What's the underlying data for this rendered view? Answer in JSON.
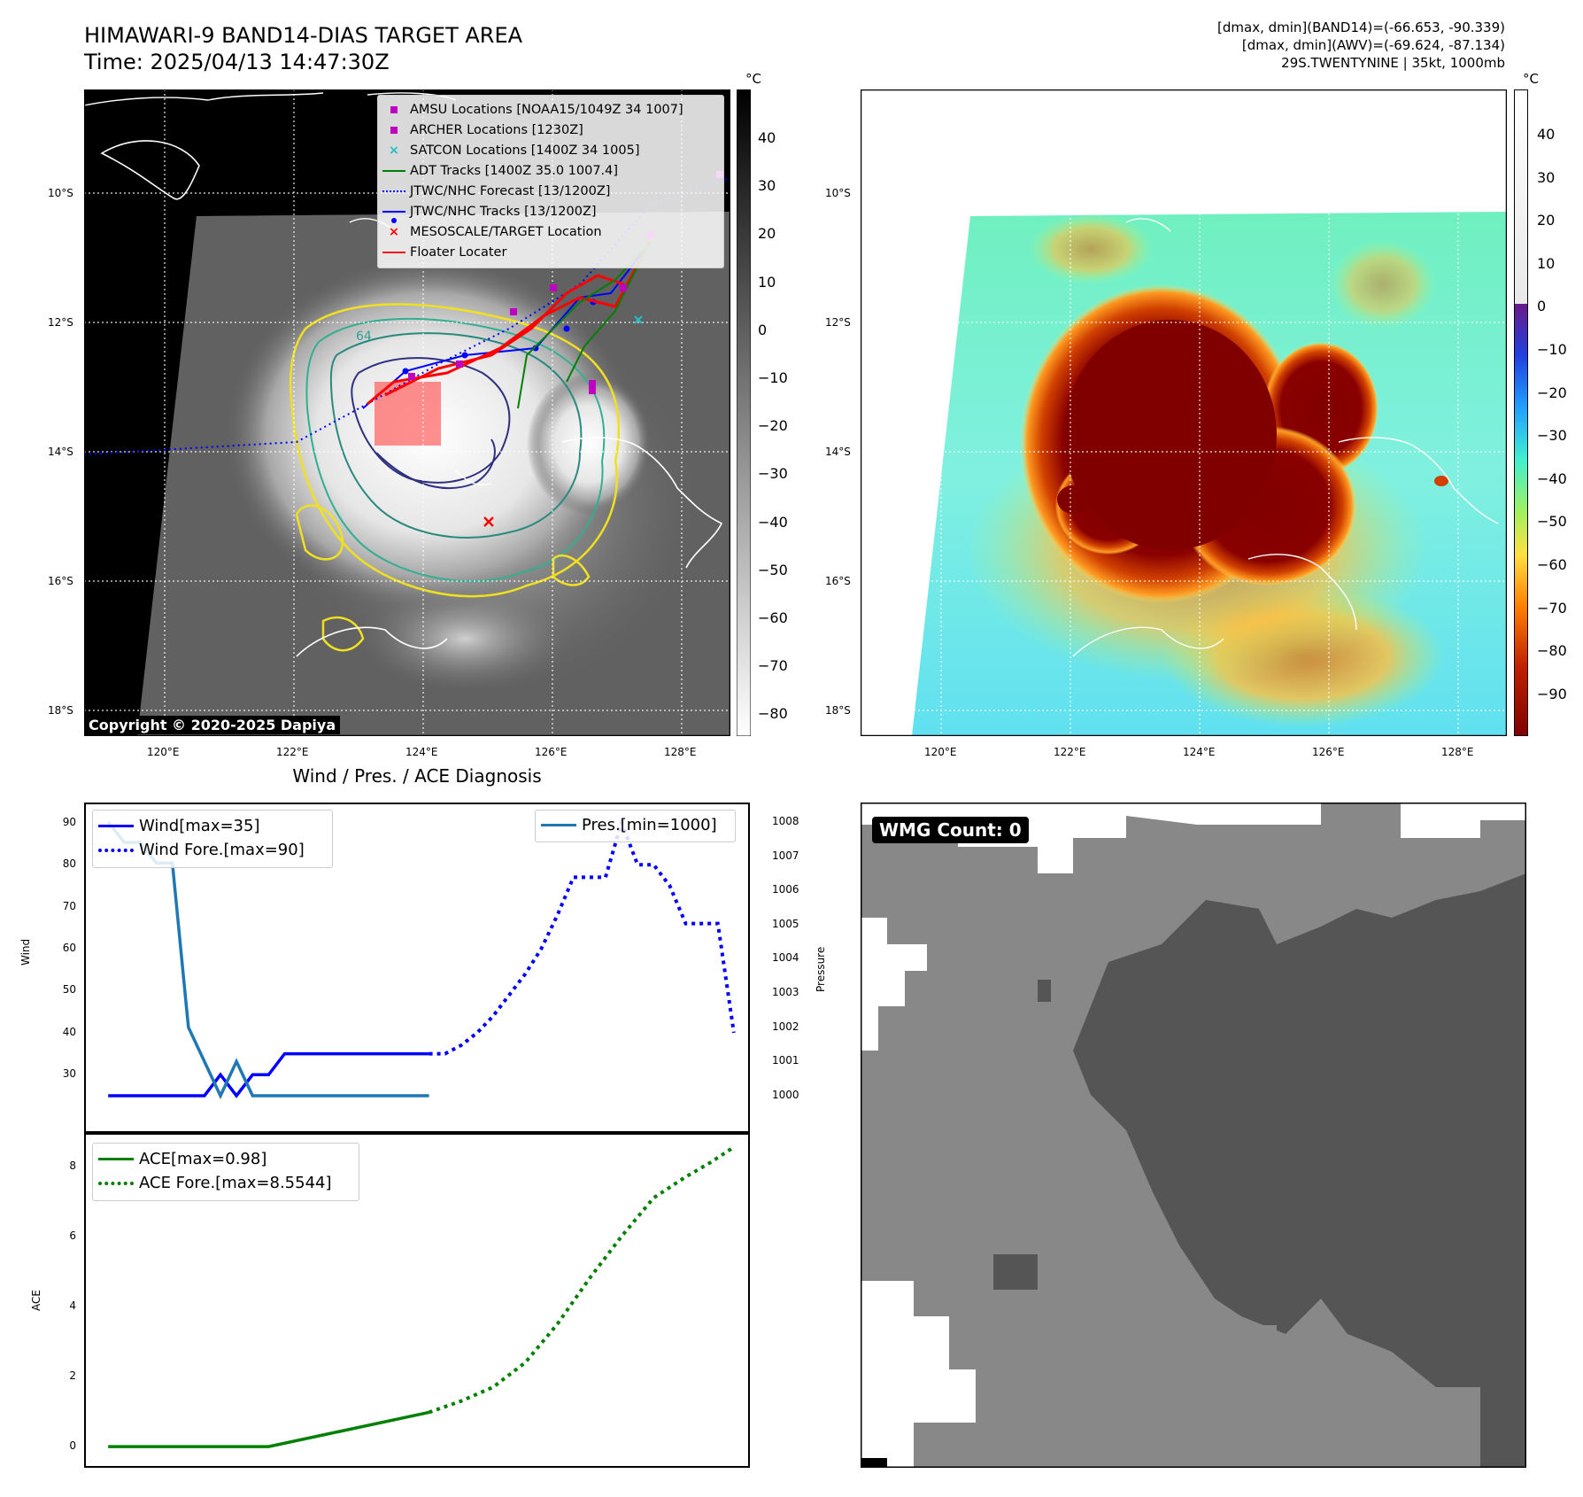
{
  "header": {
    "title_line1": "HIMAWARI-9 BAND14-DIAS TARGET AREA",
    "title_line2": "Time: 2025/04/13 14:47:30Z",
    "info_line1": "[dmax, dmin](BAND14)=(-66.653, -90.339)",
    "info_line2": "[dmax, dmin](AWV)=(-69.624, -87.134)",
    "info_line3": "29S.TWENTYNINE | 35kt, 1000mb"
  },
  "map": {
    "lat_labels": [
      "10°S",
      "12°S",
      "14°S",
      "16°S",
      "18°S"
    ],
    "lon_labels": [
      "120°E",
      "122°E",
      "124°E",
      "126°E",
      "128°E"
    ],
    "copyright": "Copyright © 2020-2025 Dapiya",
    "contour_label": "64",
    "legend": [
      {
        "label": "AMSU Locations [NOAA15/1049Z 34 1007]",
        "symbol": "square",
        "color": "#c000c0"
      },
      {
        "label": "ARCHER Locations [1230Z]",
        "symbol": "square",
        "color": "#c000c0"
      },
      {
        "label": "SATCON Locations [1400Z 34 1005]",
        "symbol": "x",
        "color": "#20c0c0"
      },
      {
        "label": "ADT Tracks [1400Z 35.0 1007.4]",
        "symbol": "line",
        "color": "#008000"
      },
      {
        "label": "JTWC/NHC Forecast [13/1200Z]",
        "symbol": "dotted",
        "color": "#0000ff"
      },
      {
        "label": "JTWC/NHC Tracks [13/1200Z]",
        "symbol": "line-dot",
        "color": "#0000ff"
      },
      {
        "label": "MESOSCALE/TARGET Location",
        "symbol": "x",
        "color": "#ff0000"
      },
      {
        "label": "Floater Locater",
        "symbol": "line",
        "color": "#ff0000"
      }
    ]
  },
  "colorbar_left": {
    "unit": "°C",
    "ticks": [
      "40",
      "30",
      "20",
      "10",
      "0",
      "−10",
      "−20",
      "−30",
      "−40",
      "−50",
      "−60",
      "−70",
      "−80"
    ]
  },
  "colorbar_right": {
    "unit": "°C",
    "ticks": [
      "40",
      "30",
      "20",
      "10",
      "0",
      "−10",
      "−20",
      "−30",
      "−40",
      "−50",
      "−60",
      "−70",
      "−80",
      "−90"
    ]
  },
  "diagnosis": {
    "title": "Wind / Pres. / ACE Diagnosis",
    "wind_ylabel": "Wind",
    "pressure_ylabel": "Pressure",
    "ace_ylabel": "ACE",
    "wind_ticks": [
      "90",
      "80",
      "70",
      "60",
      "50",
      "40",
      "30"
    ],
    "pressure_ticks": [
      "1008",
      "1007",
      "1006",
      "1005",
      "1004",
      "1003",
      "1002",
      "1001",
      "1000"
    ],
    "ace_ticks": [
      "8",
      "6",
      "4",
      "2",
      "0"
    ],
    "legend_wind": "Wind[max=35]",
    "legend_wind_fore": "Wind Fore.[max=90]",
    "legend_pres": "Pres.[min=1000]",
    "legend_ace": "ACE[max=0.98]",
    "legend_ace_fore": "ACE Fore.[max=8.5544]"
  },
  "wmg": {
    "label": "WMG Count: 0"
  },
  "chart_data": [
    {
      "type": "line",
      "name": "wind_pressure",
      "x": [
        0,
        1,
        2,
        3,
        4,
        5,
        6,
        7,
        8,
        9,
        10,
        11,
        12,
        13,
        14,
        15,
        16,
        17,
        18,
        19,
        20
      ],
      "series": [
        {
          "name": "Wind[max=35]",
          "axis": "left",
          "style": "solid",
          "color": "#0000ff",
          "x": [
            0,
            6,
            7,
            8,
            9,
            10,
            11,
            12,
            20
          ],
          "values": [
            25,
            25,
            30,
            25,
            30,
            30,
            35,
            35,
            35
          ]
        },
        {
          "name": "Wind Fore.[max=90]",
          "axis": "left",
          "style": "dotted",
          "color": "#0000ff",
          "x": [
            20,
            21,
            22,
            23,
            24,
            25,
            26,
            27,
            28,
            29,
            30,
            31,
            32,
            33,
            34,
            35,
            36,
            37,
            38,
            39
          ],
          "values": [
            35,
            35,
            37,
            40,
            44,
            49,
            54,
            60,
            68,
            77,
            77,
            77,
            90,
            80,
            80,
            75,
            66,
            66,
            66,
            40
          ]
        },
        {
          "name": "Pres.[min=1000]",
          "axis": "right",
          "style": "solid",
          "color": "#1f77b4",
          "x": [
            0,
            1,
            2,
            3,
            4,
            5,
            6,
            7,
            8,
            9,
            10,
            20
          ],
          "values": [
            1008,
            1007.4,
            1007.4,
            1006.8,
            1006.8,
            1002,
            1001,
            1000,
            1001,
            1000,
            1000,
            1000
          ]
        }
      ],
      "ylim_left": [
        25,
        91
      ],
      "ylim_right": [
        1000,
        1008.1
      ],
      "xlim": [
        -1.5,
        40
      ],
      "ylabel_left": "Wind",
      "ylabel_right": "Pressure"
    },
    {
      "type": "line",
      "name": "ace",
      "series": [
        {
          "name": "ACE[max=0.98]",
          "style": "solid",
          "color": "#008000",
          "x": [
            0,
            10,
            20
          ],
          "values": [
            0,
            0,
            0.98
          ]
        },
        {
          "name": "ACE Fore.[max=8.5544]",
          "style": "dotted",
          "color": "#008000",
          "x": [
            20,
            22,
            24,
            26,
            28,
            30,
            32,
            34,
            36,
            37.5,
            39
          ],
          "values": [
            0.98,
            1.3,
            1.7,
            2.4,
            3.5,
            4.8,
            6.0,
            7.1,
            7.7,
            8.1,
            8.55
          ]
        }
      ],
      "ylim": [
        -0.3,
        8.6
      ],
      "xlim": [
        -1.5,
        40
      ],
      "ylabel": "ACE"
    }
  ]
}
